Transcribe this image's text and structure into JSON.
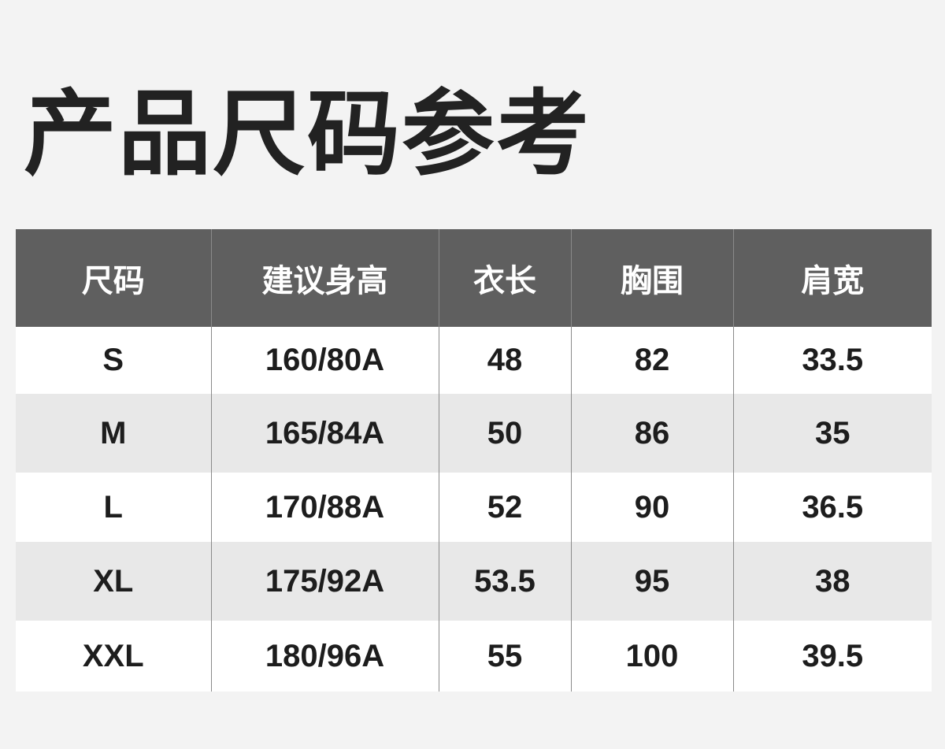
{
  "title": "产品尺码参考",
  "table": {
    "headers": [
      "尺码",
      "建议身高",
      "衣长",
      "胸围",
      "肩宽"
    ],
    "rows": [
      [
        "S",
        "160/80A",
        "48",
        "82",
        "33.5"
      ],
      [
        "M",
        "165/84A",
        "50",
        "86",
        "35"
      ],
      [
        "L",
        "170/88A",
        "52",
        "90",
        "36.5"
      ],
      [
        "XL",
        "175/92A",
        "53.5",
        "95",
        "38"
      ],
      [
        "XXL",
        "180/96A",
        "55",
        "100",
        "39.5"
      ]
    ]
  },
  "colors": {
    "header_bg": "#5f5f5f",
    "stripe": "#e8e8e8",
    "background": "#f3f3f3"
  }
}
